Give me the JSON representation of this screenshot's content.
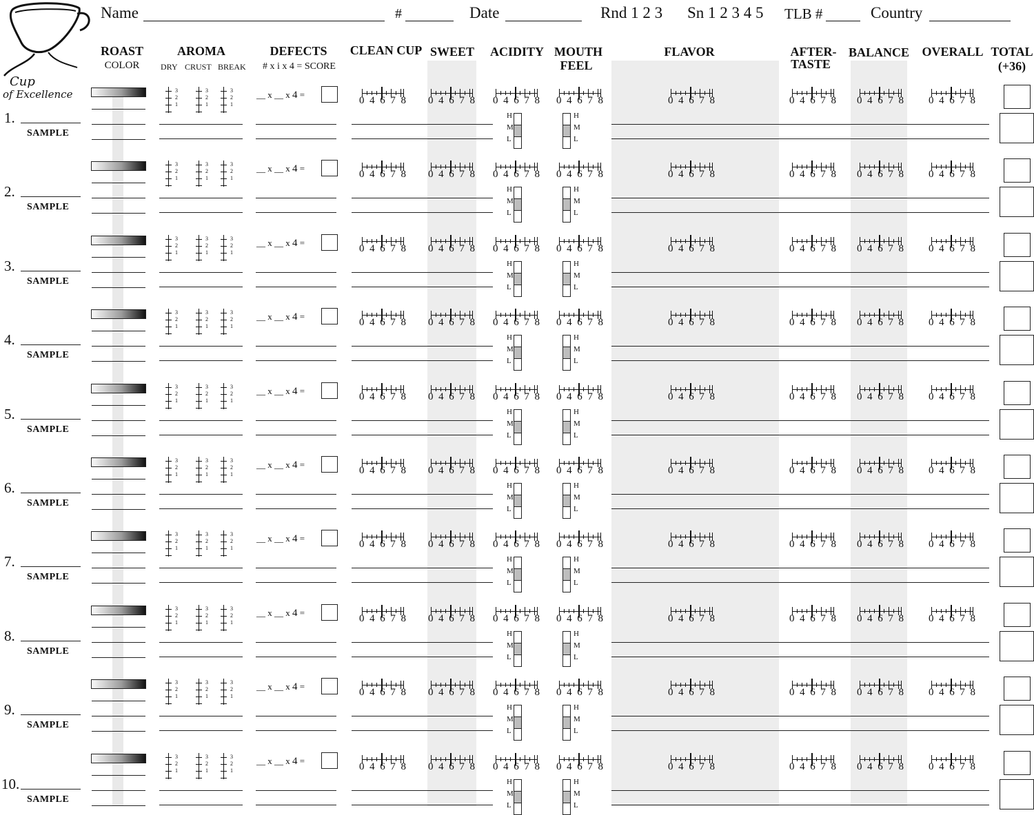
{
  "header": {
    "name_label": "Name",
    "number_label": "#",
    "date_label": "Date",
    "round_label": "Rnd 1 2 3",
    "session_label": "Sn 1 2 3 4 5",
    "tlb_label": "TLB #",
    "country_label": "Country"
  },
  "logo": {
    "text_line1": "Cup",
    "text_line2": "of Excellence"
  },
  "columns": {
    "roast": {
      "title": "ROAST",
      "sub": "COLOR"
    },
    "aroma": {
      "title": "AROMA",
      "dry": "DRY",
      "crust": "CRUST",
      "break": "BREAK"
    },
    "defects": {
      "title": "DEFECTS",
      "formula": "# x i x 4 = SCORE"
    },
    "clean_cup": "CLEAN CUP",
    "sweet": "SWEET",
    "acidity": "ACIDITY",
    "mouthfeel_1": "MOUTH",
    "mouthfeel_2": "FEEL",
    "flavor": "FLAVOR",
    "aftertaste_1": "AFTER-",
    "aftertaste_2": "TASTE",
    "balance": "BALANCE",
    "overall": "OVERALL",
    "total_1": "TOTAL",
    "total_2": "(+36)"
  },
  "scale_numbers": [
    "0",
    "4",
    "6",
    "7",
    "8"
  ],
  "aroma_numbers": [
    "3",
    "2",
    "1"
  ],
  "intensity_labels": [
    "H",
    "M",
    "L"
  ],
  "defect_formula": {
    "x": "x",
    "four": "4",
    "eq": "="
  },
  "sample_label": "SAMPLE",
  "rows": [
    "1.",
    "2.",
    "3.",
    "4.",
    "5.",
    "6.",
    "7.",
    "8.",
    "9.",
    "10."
  ]
}
